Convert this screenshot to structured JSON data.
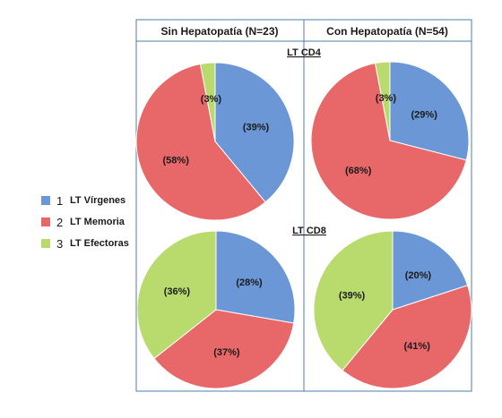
{
  "chart_data": {
    "type": "pie",
    "columns": [
      "Sin Hepatopatía (N=23)",
      "Con Hepatopatía (N=54)"
    ],
    "rows": [
      "LT CD4",
      "LT CD8"
    ],
    "categories": [
      "LT Vírgenes",
      "LT Memoria",
      "LT Efectoras"
    ],
    "legend": [
      {
        "number": "1",
        "label": "LT Vírgenes",
        "color": "#6b97d6"
      },
      {
        "number": "2",
        "label": "LT Memoria",
        "color": "#e8686a"
      },
      {
        "number": "3",
        "label": "LT Efectoras",
        "color": "#b9da6d"
      }
    ],
    "legend_position": "left",
    "pies": [
      {
        "row": "LT CD4",
        "column": "Sin Hepatopatía (N=23)",
        "values": [
          39,
          58,
          3
        ],
        "labels": [
          "(39%)",
          "(58%)",
          "(3%)"
        ]
      },
      {
        "row": "LT CD4",
        "column": "Con Hepatopatía (N=54)",
        "values": [
          29,
          68,
          3
        ],
        "labels": [
          "(29%)",
          "(68%)",
          "(3%)"
        ]
      },
      {
        "row": "LT CD8",
        "column": "Sin Hepatopatía (N=23)",
        "values": [
          28,
          37,
          36
        ],
        "labels": [
          "(28%)",
          "(37%)",
          "(36%)"
        ]
      },
      {
        "row": "LT CD8",
        "column": "Con Hepatopatía (N=54)",
        "values": [
          20,
          41,
          39
        ],
        "labels": [
          "(20%)",
          "(41%)",
          "(39%)"
        ]
      }
    ]
  }
}
